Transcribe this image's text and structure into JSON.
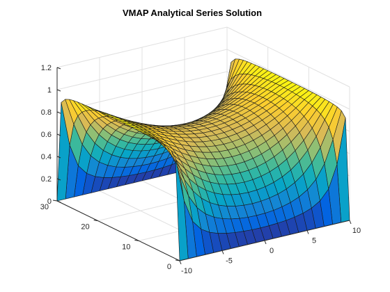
{
  "chart_data": {
    "type": "surface",
    "title": "VMAP Analytical Series Solution",
    "xlabel": "",
    "ylabel": "",
    "zlabel": "",
    "x_range": [
      -10,
      10
    ],
    "y_range": [
      0,
      30
    ],
    "z_range": [
      0,
      1.2
    ],
    "x_ticks": [
      "-10",
      "-5",
      "0",
      "5",
      "10"
    ],
    "y_ticks": [
      "0",
      "10",
      "20",
      "30"
    ],
    "z_ticks": [
      "0",
      "0.2",
      "0.4",
      "0.6",
      "0.8",
      "1",
      "1.2"
    ],
    "grid": true,
    "colormap": "parula",
    "boundary_values": {
      "at_x_min": 1,
      "at_x_max": 1,
      "at_y_min": 0,
      "at_y_max": 0
    },
    "mesh": {
      "x_steps": 20,
      "y_steps": 30
    }
  }
}
